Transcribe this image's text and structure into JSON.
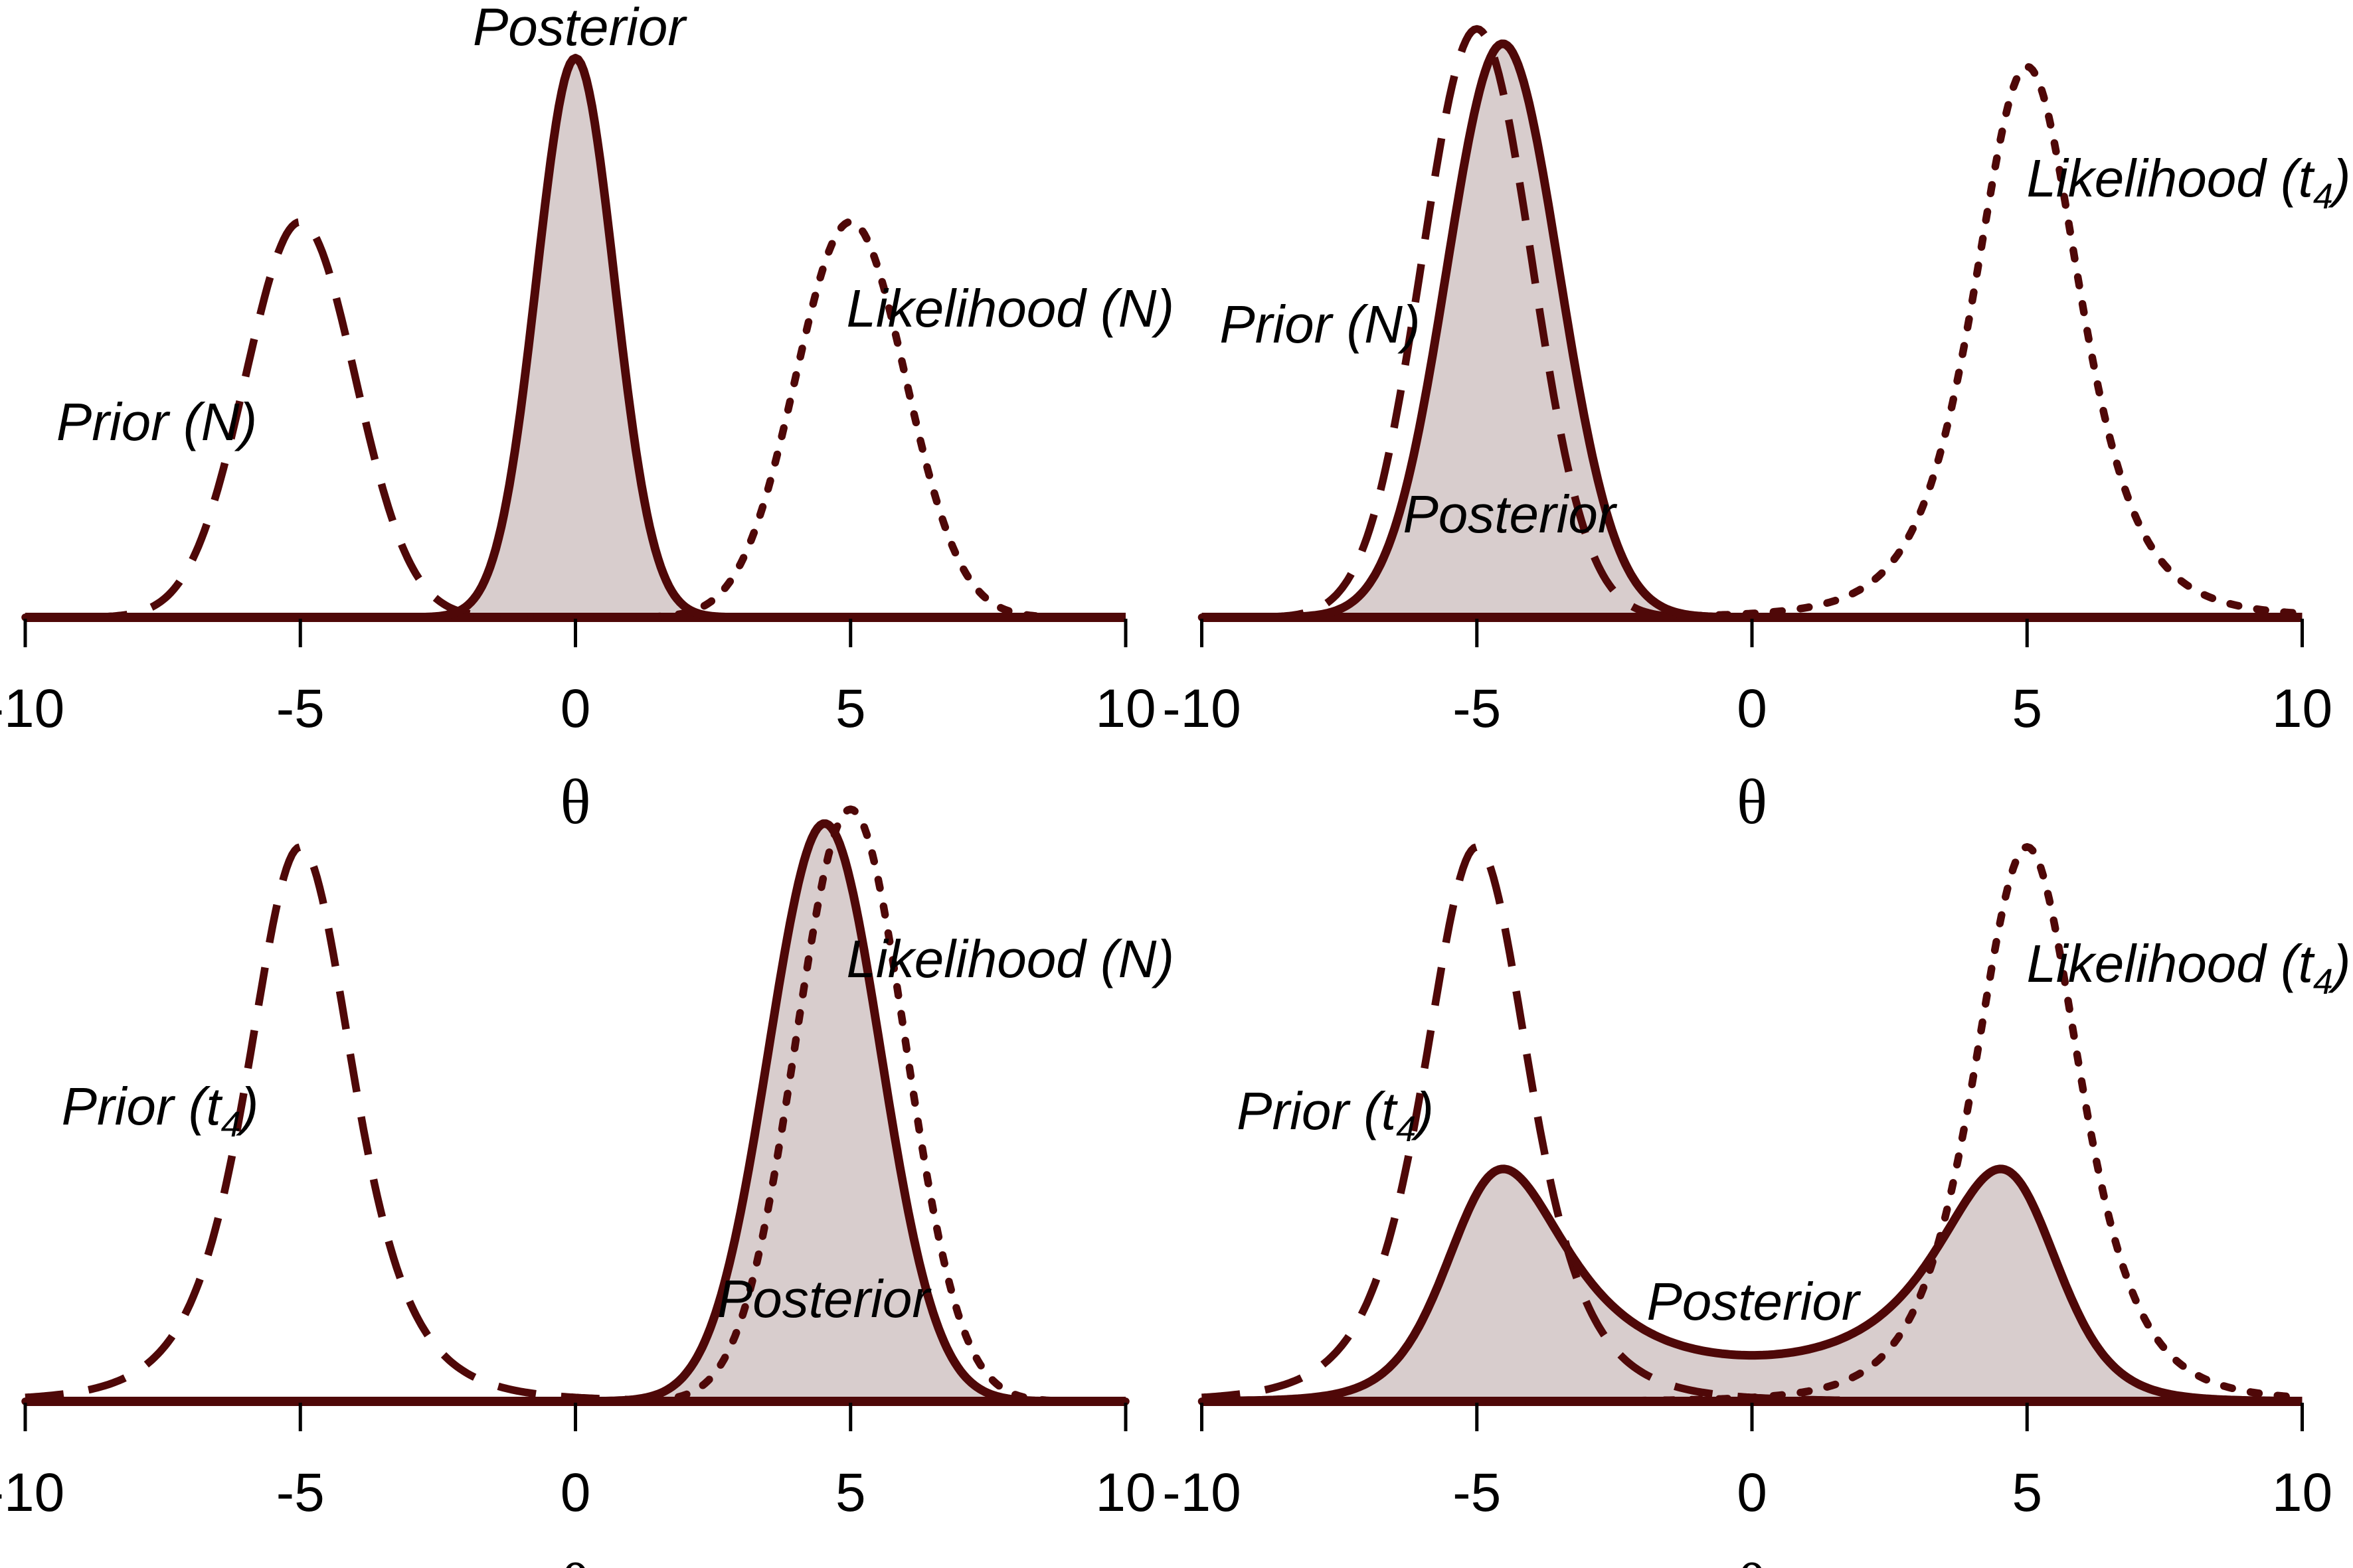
{
  "figure": {
    "background": "#ffffff",
    "curve_color": "#4f0808",
    "posterior_fill_color": "#d8cdcd",
    "text_color": "#000000",
    "tick_color": "#000000"
  },
  "chart_data": {
    "type": "line",
    "description": "Four-panel figure of Bayesian updating: dashed prior, dotted likelihood, solid shaded posterior density over parameter theta",
    "x_range": [
      -10,
      10
    ],
    "x_ticks": [
      -10,
      -5,
      0,
      5,
      10
    ],
    "x_tick_labels": [
      "-10",
      "-5",
      "0",
      "5",
      "10"
    ],
    "xlabel": "θ",
    "grid": false,
    "panels": [
      {
        "id": "top-left",
        "curves": {
          "prior": {
            "name": "Prior (N)",
            "dist": "normal",
            "center": -5,
            "scale": 1,
            "style": "dashed",
            "peak": 0.662
          },
          "likelihood": {
            "name": "Likelihood (N)",
            "dist": "normal",
            "center": 5,
            "scale": 1,
            "style": "dotted",
            "peak": 0.662
          },
          "posterior": {
            "name": "Posterior",
            "dist": "product",
            "adjust": [
              1,
              1
            ],
            "style": "solid",
            "filled": true,
            "peak": 0.936,
            "mode": 0
          }
        },
        "labels": {
          "posterior": {
            "text": "Posterior",
            "x": 0.492,
            "y": 0.058,
            "anchor": "middle"
          },
          "prior": {
            "pre": "Prior (N)",
            "sub": "",
            "post": "",
            "x": 0.133,
            "y": 0.561,
            "anchor": "middle"
          },
          "likelihood": {
            "pre": "Likelihood (N)",
            "sub": "",
            "post": "",
            "x": 0.998,
            "y": 0.417,
            "anchor": "end"
          }
        }
      },
      {
        "id": "top-right",
        "curves": {
          "prior": {
            "name": "Prior (N)",
            "dist": "normal",
            "center": -5,
            "scale": 1,
            "style": "dashed",
            "peak": 0.985
          },
          "likelihood": {
            "name": "Likelihood (t4)",
            "dist": "t4",
            "center": 5,
            "scale": 1,
            "style": "dotted",
            "peak": 0.922
          },
          "posterior": {
            "name": "Posterior",
            "dist": "product",
            "adjust": [
              1,
              1.6
            ],
            "style": "solid",
            "filled": true,
            "peak": 0.96,
            "mode": -4.5
          }
        },
        "labels": {
          "posterior": {
            "text": "Posterior",
            "x": 0.283,
            "y": 0.679,
            "anchor": "middle"
          },
          "prior": {
            "pre": "Prior (N)",
            "sub": "",
            "post": "",
            "x": 0.122,
            "y": 0.437,
            "anchor": "middle"
          },
          "likelihood": {
            "pre": "Likelihood (t",
            "sub": "4",
            "post": ")",
            "x": 0.998,
            "y": 0.251,
            "anchor": "end"
          }
        }
      },
      {
        "id": "bottom-left",
        "curves": {
          "prior": {
            "name": "Prior (t4)",
            "dist": "t4",
            "center": -5,
            "scale": 1,
            "style": "dashed",
            "peak": 0.928
          },
          "likelihood": {
            "name": "Likelihood (N)",
            "dist": "normal",
            "center": 5,
            "scale": 1,
            "style": "dotted",
            "peak": 0.991
          },
          "posterior": {
            "name": "Posterior",
            "dist": "product",
            "adjust": [
              1.6,
              1
            ],
            "style": "solid",
            "filled": true,
            "peak": 0.967,
            "mode": 4.5
          }
        },
        "labels": {
          "posterior": {
            "text": "Posterior",
            "x": 0.7,
            "y": 0.68,
            "anchor": "middle"
          },
          "prior": {
            "pre": "Prior (t",
            "sub": "4",
            "post": ")",
            "x": 0.136,
            "y": 0.434,
            "anchor": "middle"
          },
          "likelihood": {
            "pre": "Likelihood (N)",
            "sub": "",
            "post": "",
            "x": 0.998,
            "y": 0.246,
            "anchor": "end"
          }
        }
      },
      {
        "id": "bottom-right",
        "curves": {
          "prior": {
            "name": "Prior (t4)",
            "dist": "t4",
            "center": -5,
            "scale": 1,
            "style": "dashed",
            "peak": 0.928
          },
          "likelihood": {
            "name": "Likelihood (t4)",
            "dist": "t4",
            "center": 5,
            "scale": 1,
            "style": "dotted",
            "peak": 0.928
          },
          "posterior": {
            "name": "Posterior",
            "dist": "product",
            "adjust": [
              1.07,
              1.07
            ],
            "style": "solid",
            "filled": true,
            "peak": 0.389,
            "modes": [
              -4.5,
              4.5
            ]
          }
        },
        "labels": {
          "posterior": {
            "text": "Posterior",
            "x": 0.49,
            "y": 0.683,
            "anchor": "middle"
          },
          "prior": {
            "pre": "Prior (t",
            "sub": "4",
            "post": ")",
            "x": 0.135,
            "y": 0.44,
            "anchor": "middle"
          },
          "likelihood": {
            "pre": "Likelihood (t",
            "sub": "4",
            "post": ")",
            "x": 0.998,
            "y": 0.252,
            "anchor": "end"
          }
        }
      }
    ]
  }
}
